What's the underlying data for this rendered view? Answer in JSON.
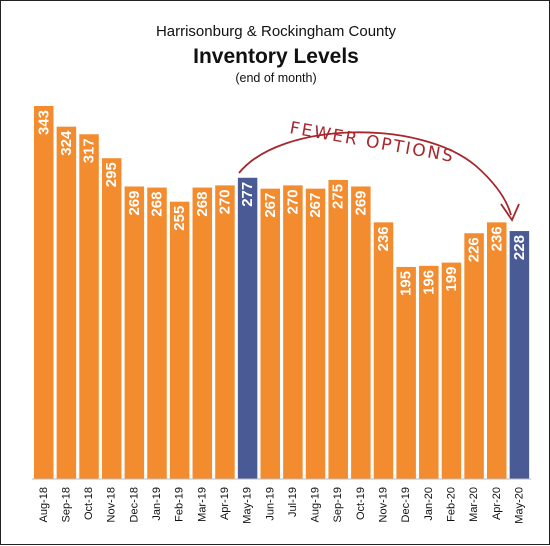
{
  "chart_data": {
    "type": "bar",
    "supertitle": "Harrisonburg & Rockingham County",
    "title": "Inventory Levels",
    "subtitle": "(end of month)",
    "categories": [
      "Aug-18",
      "Sep-18",
      "Oct-18",
      "Nov-18",
      "Dec-18",
      "Jan-19",
      "Feb-19",
      "Mar-19",
      "Apr-19",
      "May-19",
      "Jun-19",
      "Jul-19",
      "Aug-19",
      "Sep-19",
      "Oct-19",
      "Nov-19",
      "Dec-19",
      "Jan-20",
      "Feb-20",
      "Mar-20",
      "Apr-20",
      "May-20"
    ],
    "values": [
      343,
      324,
      317,
      295,
      269,
      268,
      255,
      268,
      270,
      277,
      267,
      270,
      267,
      275,
      269,
      236,
      195,
      196,
      199,
      226,
      236,
      228
    ],
    "highlighted": [
      "May-19",
      "May-20"
    ],
    "ylim": [
      0,
      343
    ],
    "grid": false,
    "annotation": "FEWER OPTIONS",
    "colors": {
      "bar": "#f38b2f",
      "highlight": "#4a5a95",
      "annotation": "#a8262c"
    }
  }
}
